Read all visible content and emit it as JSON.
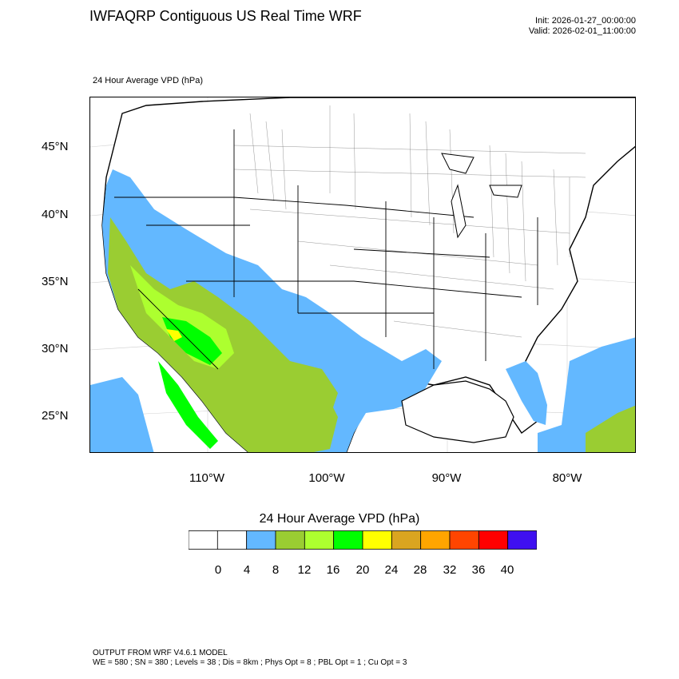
{
  "header": {
    "title": "IWFAQRP Contiguous US Real Time WRF",
    "init": "Init: 2026-01-27_00:00:00",
    "valid": "Valid: 2026-02-01_11:00:00"
  },
  "field_label": "24 Hour Average VPD   (hPa)",
  "axes": {
    "lat_labels": [
      "45°N",
      "40°N",
      "35°N",
      "30°N",
      "25°N"
    ],
    "lon_labels": [
      "110°W",
      "100°W",
      "90°W",
      "80°W"
    ]
  },
  "colorbar": {
    "title": "24 Hour Average VPD  (hPa)",
    "labels": [
      "0",
      "4",
      "8",
      "12",
      "16",
      "20",
      "24",
      "28",
      "32",
      "36",
      "40"
    ],
    "colors": [
      "#ffffff",
      "#ffffff",
      "#63b8ff",
      "#9acd32",
      "#adff2f",
      "#00ff00",
      "#ffff00",
      "#daa520",
      "#ffa500",
      "#ff4500",
      "#ff0000",
      "#3f10f0"
    ]
  },
  "footer": {
    "line1": "OUTPUT FROM WRF V4.6.1 MODEL",
    "line2": "WE = 580 ; SN = 380 ; Levels = 38 ; Dis = 8km ; Phys Opt = 8 ; PBL Opt = 1 ; Cu Opt = 3"
  }
}
